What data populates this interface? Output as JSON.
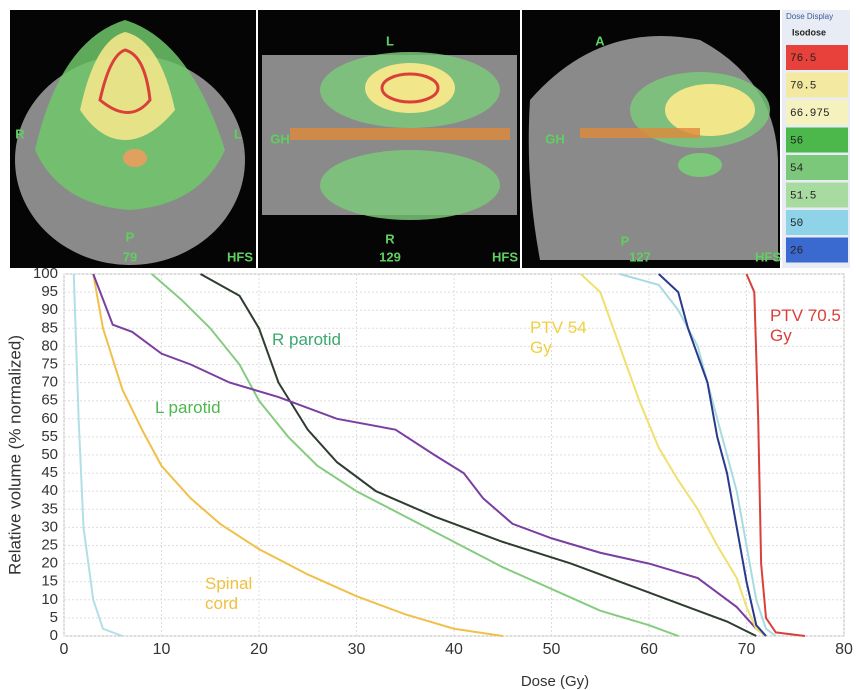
{
  "images": {
    "panels": [
      {
        "labels": [
          "R",
          "L",
          "P",
          "79",
          "HFS"
        ]
      },
      {
        "labels": [
          "L",
          "GH",
          "R",
          "129",
          "HFS"
        ]
      },
      {
        "labels": [
          "A",
          "GH",
          "P",
          "127",
          "HFS"
        ]
      }
    ],
    "isodose_legend": {
      "title": "Dose Display",
      "checkbox": "Isodose",
      "levels": [
        {
          "label": "76.5",
          "color": "#e8403a"
        },
        {
          "label": "70.5",
          "color": "#f4e9a0"
        },
        {
          "label": "66.975",
          "color": "#f6f2c0"
        },
        {
          "label": "56",
          "color": "#4cb84c"
        },
        {
          "label": "54",
          "color": "#7cc87a"
        },
        {
          "label": "51.5",
          "color": "#a8dba0"
        },
        {
          "label": "50",
          "color": "#8fd3e8"
        },
        {
          "label": "26",
          "color": "#3a6ad0"
        }
      ]
    }
  },
  "chart_data": {
    "type": "line",
    "xlabel": "Dose (Gy)",
    "ylabel": "Relative volume (% normalized)",
    "xlim": [
      0,
      80
    ],
    "ylim": [
      0,
      100
    ],
    "xticks": [
      0,
      10,
      20,
      30,
      40,
      50,
      60,
      70,
      80
    ],
    "yticks": [
      0,
      5,
      10,
      15,
      20,
      25,
      30,
      35,
      40,
      45,
      50,
      55,
      60,
      65,
      70,
      75,
      80,
      85,
      90,
      95,
      100
    ],
    "grid": true,
    "series": [
      {
        "color": "#b0e0e6",
        "x": [
          1,
          1.5,
          2,
          3,
          4,
          6
        ],
        "values": [
          100,
          60,
          30,
          10,
          2,
          0
        ]
      },
      {
        "name": "Spinal cord",
        "color": "#f0c04a",
        "x": [
          3,
          4,
          6,
          8,
          10,
          13,
          16,
          20,
          25,
          30,
          35,
          40,
          45
        ],
        "values": [
          100,
          85,
          68,
          57,
          47,
          38,
          31,
          24,
          17,
          11,
          6,
          2,
          0
        ]
      },
      {
        "name": "L parotid",
        "color": "#86cc80",
        "x": [
          9,
          12,
          15,
          18,
          20,
          23,
          26,
          30,
          35,
          40,
          45,
          50,
          55,
          60,
          63
        ],
        "values": [
          100,
          93,
          85,
          75,
          65,
          55,
          47,
          40,
          33,
          26,
          19,
          13,
          7,
          3,
          0
        ]
      },
      {
        "name": "R parotid",
        "color": "#2e3d30",
        "x": [
          14,
          18,
          20,
          22,
          25,
          28,
          32,
          38,
          45,
          52,
          58,
          63,
          68,
          71
        ],
        "values": [
          100,
          94,
          85,
          70,
          57,
          48,
          40,
          33,
          26,
          20,
          14,
          9,
          4,
          0
        ]
      },
      {
        "color": "#7a3fa0",
        "x": [
          3,
          5,
          7,
          10,
          13,
          17,
          22,
          28,
          34,
          38,
          41,
          43,
          46,
          50,
          55,
          60,
          65,
          69,
          71,
          72
        ],
        "values": [
          100,
          86,
          84,
          78,
          75,
          70,
          66,
          60,
          57,
          50,
          45,
          38,
          31,
          27,
          23,
          20,
          16,
          8,
          2,
          0
        ]
      },
      {
        "name": "PTV 54 Gy",
        "color": "#efe070",
        "x": [
          53,
          55,
          57,
          59,
          61,
          63,
          65,
          67,
          69,
          70,
          71,
          72
        ],
        "values": [
          100,
          95,
          80,
          65,
          52,
          43,
          35,
          25,
          16,
          8,
          2,
          0
        ]
      },
      {
        "color": "#a8dbe0",
        "x": [
          57,
          61,
          63,
          65,
          67,
          69,
          70,
          71,
          72,
          73
        ],
        "values": [
          100,
          97,
          90,
          80,
          60,
          40,
          25,
          10,
          2,
          0
        ]
      },
      {
        "color": "#2a3a8a",
        "x": [
          61,
          63,
          64,
          66,
          67,
          68,
          69,
          70,
          71,
          72
        ],
        "values": [
          100,
          95,
          85,
          70,
          55,
          45,
          30,
          15,
          3,
          0
        ]
      },
      {
        "name": "PTV 70.5 Gy",
        "color": "#d9403a",
        "x": [
          70,
          70.8,
          71.2,
          71.5,
          72,
          73,
          76
        ],
        "values": [
          100,
          95,
          60,
          20,
          5,
          1,
          0
        ]
      }
    ]
  }
}
